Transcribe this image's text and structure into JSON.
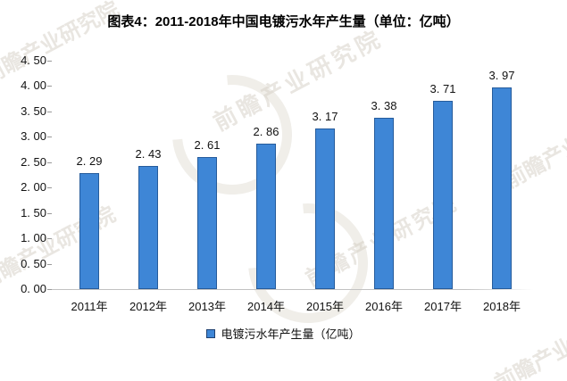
{
  "title": "图表4：2011-2018年中国电镀污水年产生量（单位：亿吨）",
  "watermark": {
    "text": "前瞻产业研究院"
  },
  "legend": {
    "label": "电镀污水年产生量（亿吨）"
  },
  "chart_data": {
    "type": "bar",
    "title": "图表4：2011-2018年中国电镀污水年产生量（单位：亿吨）",
    "categories": [
      "2011年",
      "2012年",
      "2013年",
      "2014年",
      "2015年",
      "2016年",
      "2017年",
      "2018年"
    ],
    "values": [
      2.29,
      2.43,
      2.61,
      2.86,
      3.17,
      3.38,
      3.71,
      3.97
    ],
    "value_labels": [
      "2. 29",
      "2. 43",
      "2. 61",
      "2. 86",
      "3. 17",
      "3. 38",
      "3. 71",
      "3. 97"
    ],
    "series_name": "电镀污水年产生量（亿吨）",
    "xlabel": "",
    "ylabel": "",
    "ylim": [
      0,
      4.5
    ],
    "y_ticks": [
      "4. 50",
      "4. 00",
      "3. 50",
      "3. 00",
      "2. 50",
      "2. 00",
      "1. 50",
      "1. 00",
      "0. 50",
      "0. 00"
    ],
    "grid": false,
    "legend_position": "bottom",
    "colors": {
      "bar_fill": "#3E86D6",
      "bar_border": "#265C9C"
    }
  }
}
